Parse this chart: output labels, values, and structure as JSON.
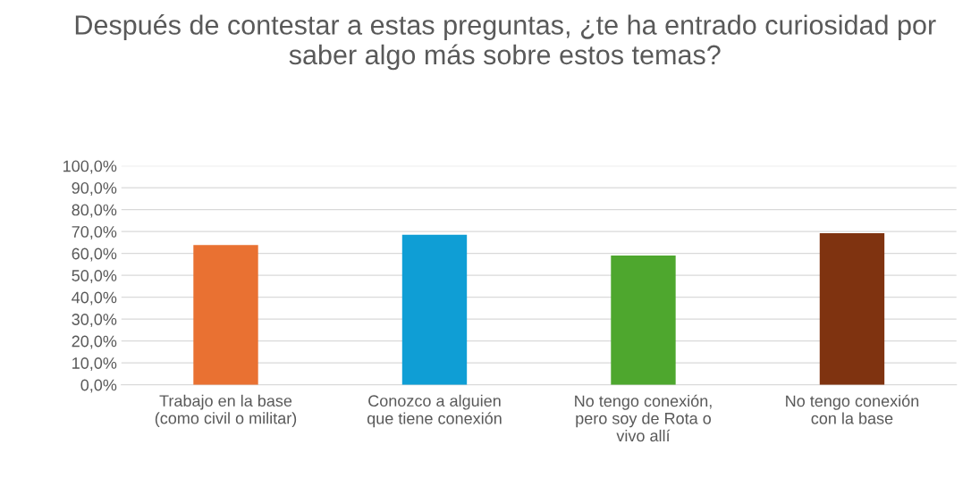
{
  "chart_data": {
    "type": "bar",
    "title": "Después de contestar a estas preguntas, ¿te ha entrado curiosidad por saber algo más sobre estos temas?",
    "categories": [
      "Trabajo en la base\n(como civil o militar)",
      "Conozco a alguien\nque tiene conexión",
      "No tengo conexión,\npero soy de Rota o\nvivo allí",
      "No tengo conexión\ncon la base"
    ],
    "values": [
      63.8,
      68.5,
      59.0,
      69.2
    ],
    "colors": [
      "#e97132",
      "#0f9ed5",
      "#4ea72e",
      "#7f3310"
    ],
    "ylim": [
      0,
      100
    ],
    "yticks": [
      {
        "value": 0,
        "label": "0,0%"
      },
      {
        "value": 10,
        "label": "10,0%"
      },
      {
        "value": 20,
        "label": "20,0%"
      },
      {
        "value": 30,
        "label": "30,0%"
      },
      {
        "value": 40,
        "label": "40,0%"
      },
      {
        "value": 50,
        "label": "50,0%"
      },
      {
        "value": 60,
        "label": "60,0%"
      },
      {
        "value": 70,
        "label": "70,0%"
      },
      {
        "value": 80,
        "label": "80,0%"
      },
      {
        "value": 90,
        "label": "90,0%"
      },
      {
        "value": 100,
        "label": "100,0%"
      }
    ],
    "grid": "y",
    "legend": false
  }
}
